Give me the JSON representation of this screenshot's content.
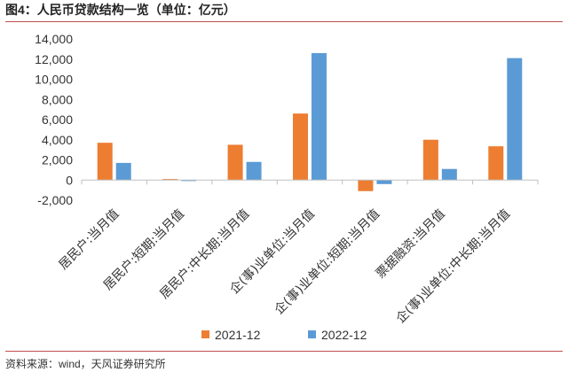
{
  "figure": {
    "title": "图4：人民币贷款结构一览（单位：亿元）",
    "source": "资料来源：wind，天风证券研究所"
  },
  "colors": {
    "series_2021": "#ed7d31",
    "series_2022": "#5b9bd5",
    "axis": "#bfbfbf"
  },
  "chart_data": {
    "type": "bar",
    "title": "",
    "xlabel": "",
    "ylabel": "",
    "ylim": [
      -2000,
      14000
    ],
    "yticks": [
      -2000,
      0,
      2000,
      4000,
      6000,
      8000,
      10000,
      12000,
      14000
    ],
    "ytick_labels": [
      "-2,000",
      "0",
      "2,000",
      "4,000",
      "6,000",
      "8,000",
      "10,000",
      "12,000",
      "14,000"
    ],
    "grid": false,
    "legend": "bottom",
    "categories": [
      "居民户:当月值",
      "居民户:短期:当月值",
      "居民户:中长期:当月值",
      "企(事)业单位:当月值",
      "企(事)业单位:短期:当月值",
      "票据融资:当月值",
      "企(事)业单位:中长期:当月值"
    ],
    "series": [
      {
        "name": "2021-12",
        "values": [
          3700,
          100,
          3500,
          6600,
          -1100,
          4000,
          3350
        ]
      },
      {
        "name": "2022-12",
        "values": [
          1700,
          -100,
          1800,
          12600,
          -400,
          1100,
          12100
        ]
      }
    ]
  }
}
